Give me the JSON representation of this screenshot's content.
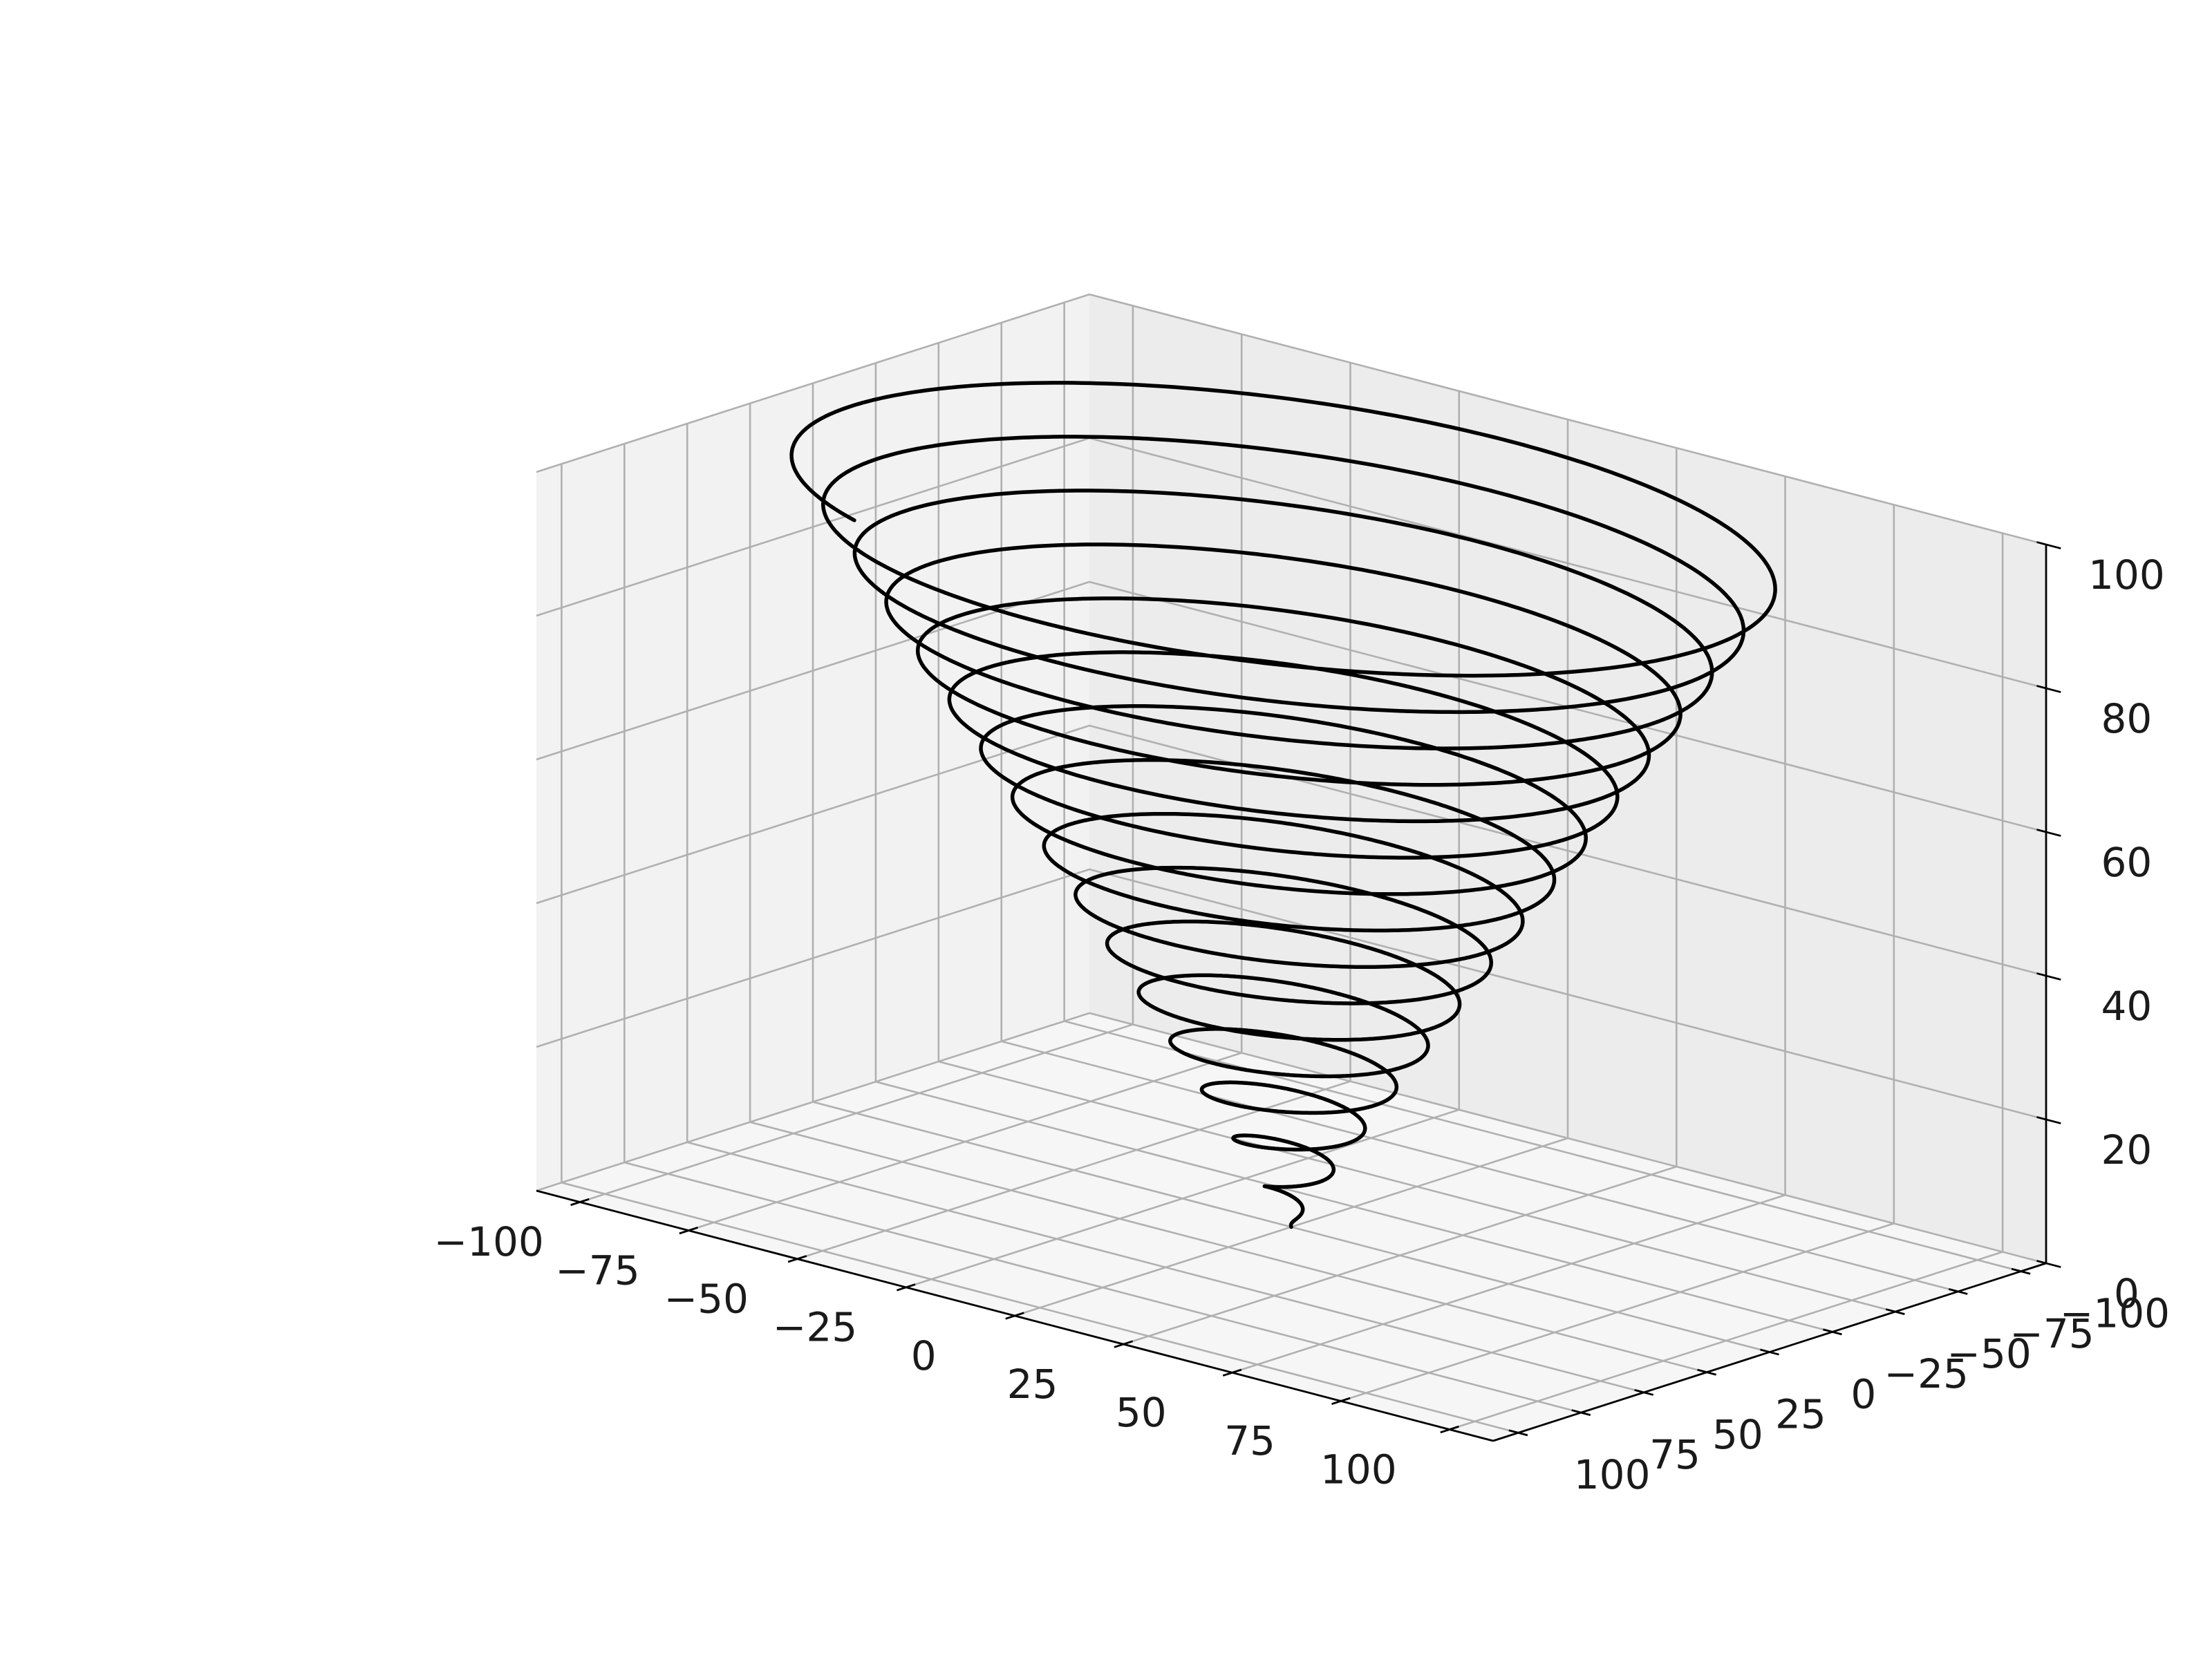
{
  "chart_data": {
    "type": "line3d",
    "title": "",
    "xlabel": "",
    "ylabel": "",
    "zlabel": "",
    "xlim": [
      -110,
      110
    ],
    "ylim": [
      -110,
      110
    ],
    "zlim": [
      0,
      100
    ],
    "x_ticks": [
      -100,
      -75,
      -50,
      -25,
      0,
      25,
      50,
      75,
      100
    ],
    "y_ticks": [
      -100,
      -75,
      -50,
      -25,
      0,
      25,
      50,
      75,
      100
    ],
    "z_ticks": [
      0,
      20,
      40,
      60,
      80,
      100
    ],
    "x_tick_labels": [
      "−100",
      "−75",
      "−50",
      "−25",
      "0",
      "25",
      "50",
      "75",
      "100"
    ],
    "y_tick_labels": [
      "−100",
      "−75",
      "−50",
      "−25",
      "0",
      "25",
      "50",
      "75",
      "100"
    ],
    "z_tick_labels": [
      "0",
      "20",
      "40",
      "60",
      "80",
      "100"
    ],
    "grid": true,
    "series": [
      {
        "color": "#000000",
        "parametric": "x = z*sin(z), y = z*cos(z)",
        "z_range": [
          0,
          100
        ]
      }
    ]
  },
  "colors": {
    "pane_left": "#f2f2f2",
    "pane_right": "#ececec",
    "pane_floor": "#f6f6f6",
    "grid": "#b0b0b0",
    "axis": "#000000",
    "line": "#000000"
  }
}
